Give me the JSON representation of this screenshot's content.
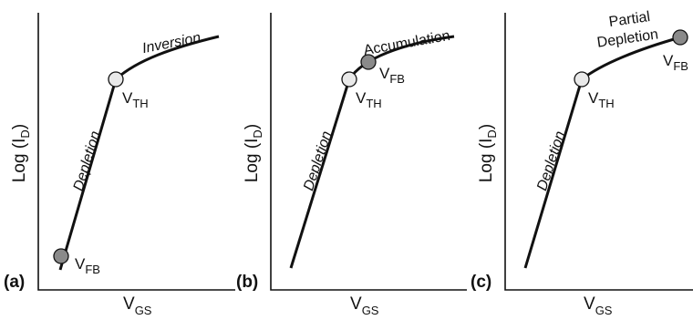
{
  "panels": [
    {
      "id": "a",
      "panel_label": "(a)",
      "x_axis": {
        "main": "V",
        "sub": "GS"
      },
      "y_axis": {
        "pre": "Log (I",
        "sub": "D",
        "post": ")"
      },
      "regions": [
        "Depletion",
        "Inversion"
      ],
      "points": [
        {
          "main": "V",
          "sub": "TH",
          "color": "#e9e9e9"
        },
        {
          "main": "V",
          "sub": "FB",
          "color": "#8a8a8a"
        }
      ]
    },
    {
      "id": "b",
      "panel_label": "(b)",
      "x_axis": {
        "main": "V",
        "sub": "GS"
      },
      "y_axis": {
        "pre": "Log (I",
        "sub": "D",
        "post": ")"
      },
      "regions": [
        "Depletion",
        "Accumulation"
      ],
      "points": [
        {
          "main": "V",
          "sub": "TH",
          "color": "#e9e9e9"
        },
        {
          "main": "V",
          "sub": "FB",
          "color": "#8a8a8a"
        }
      ]
    },
    {
      "id": "c",
      "panel_label": "(c)",
      "x_axis": {
        "main": "V",
        "sub": "GS"
      },
      "y_axis": {
        "pre": "Log (I",
        "sub": "D",
        "post": ")"
      },
      "regions": [
        "Depletion",
        "Partial",
        "Depletion"
      ],
      "points": [
        {
          "main": "V",
          "sub": "TH",
          "color": "#e9e9e9"
        },
        {
          "main": "V",
          "sub": "FB",
          "color": "#8a8a8a"
        }
      ]
    }
  ],
  "colors": {
    "line": "#111111",
    "open_marker": "#e9e9e9",
    "filled_marker": "#8a8a8a"
  }
}
